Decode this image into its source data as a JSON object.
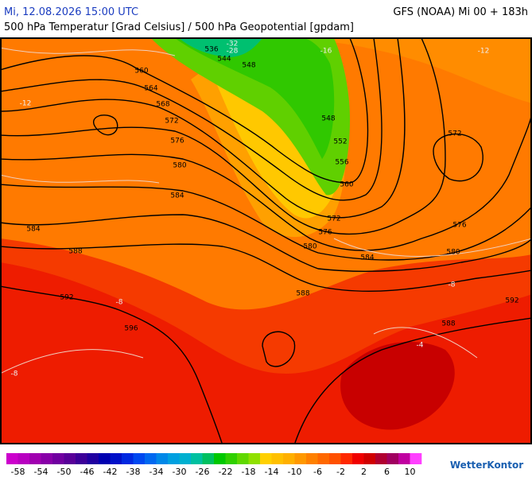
{
  "header": {
    "datetime": "Mi, 12.08.2026 15:00 UTC",
    "model": "GFS (NOAA) Mi 00 + 183h",
    "subtitle": "500 hPa Temperatur [Grad Celsius] / 500 hPa Geopotential [gpdam]"
  },
  "map": {
    "contour_labels": [
      "560",
      "564",
      "568",
      "572",
      "576",
      "580",
      "584",
      "584",
      "588",
      "592",
      "596",
      "536",
      "544",
      "548",
      "548",
      "552",
      "556",
      "560",
      "572",
      "576",
      "580",
      "584",
      "588",
      "588",
      "592",
      "580",
      "576",
      "572",
      "-12",
      "-12",
      "-8",
      "-8",
      "-8",
      "-4",
      "-16",
      "-28",
      "-32"
    ]
  },
  "colorbar": {
    "labels": [
      -58,
      -54,
      -50,
      -46,
      -42,
      -38,
      -34,
      -30,
      -26,
      -22,
      -18,
      -14,
      -10,
      -6,
      -2,
      2,
      6,
      10
    ],
    "colors": [
      "#cc00cc",
      "#b800c0",
      "#a000b0",
      "#8800a8",
      "#7000a0",
      "#580098",
      "#3c0098",
      "#2000a0",
      "#0000b0",
      "#0010c8",
      "#0028e0",
      "#0048f0",
      "#0068f0",
      "#0088e8",
      "#00a0e0",
      "#00b0d0",
      "#00c0a0",
      "#00c060",
      "#00c800",
      "#30d000",
      "#60d800",
      "#90e000",
      "#ffd000",
      "#ffc000",
      "#ffb000",
      "#ff9800",
      "#ff8000",
      "#ff6800",
      "#ff5000",
      "#ff2800",
      "#f00000",
      "#d00000",
      "#b00030",
      "#a00060",
      "#c000a0",
      "#ff40ff"
    ]
  },
  "brand": "WetterKontor"
}
